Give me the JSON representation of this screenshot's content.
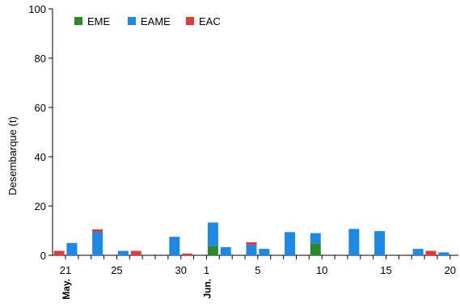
{
  "chart_data": {
    "type": "bar",
    "stacked": true,
    "title": "",
    "xlabel": "",
    "ylabel": "Desembarque (t)",
    "ylim": [
      0,
      100
    ],
    "yticks": [
      0,
      20,
      40,
      60,
      80,
      100
    ],
    "grid": false,
    "legend_placement": "top-left",
    "x_tick_labels": [
      {
        "day": 0,
        "label": "21"
      },
      {
        "day": 4,
        "label": "25"
      },
      {
        "day": 9,
        "label": "30"
      },
      {
        "day": 11,
        "label": "1"
      },
      {
        "day": 15,
        "label": "5"
      },
      {
        "day": 20,
        "label": "10"
      },
      {
        "day": 25,
        "label": "15"
      },
      {
        "day": 30,
        "label": "20"
      }
    ],
    "month_labels": [
      {
        "day": 0,
        "label": "May."
      },
      {
        "day": 11,
        "label": "Jun."
      }
    ],
    "bars": [
      {
        "day": -0.5,
        "EME": 0,
        "EAME": 0,
        "EAC": 1.8
      },
      {
        "day": 0.5,
        "EME": 0,
        "EAME": 5.0,
        "EAC": 0
      },
      {
        "day": 2.5,
        "EME": 0,
        "EAME": 9.5,
        "EAC": 1.0
      },
      {
        "day": 4.5,
        "EME": 0,
        "EAME": 1.8,
        "EAC": 0
      },
      {
        "day": 5.5,
        "EME": 0,
        "EAME": 0,
        "EAC": 1.8
      },
      {
        "day": 8.5,
        "EME": 0,
        "EAME": 7.5,
        "EAC": 0
      },
      {
        "day": 9.5,
        "EME": 0,
        "EAME": 0,
        "EAC": 0.7
      },
      {
        "day": 11.5,
        "EME": 3.8,
        "EAME": 9.5,
        "EAC": 0
      },
      {
        "day": 12.5,
        "EME": 0,
        "EAME": 3.3,
        "EAC": 0
      },
      {
        "day": 14.5,
        "EME": 0,
        "EAME": 4.3,
        "EAC": 1.0
      },
      {
        "day": 15.5,
        "EME": 0,
        "EAME": 2.6,
        "EAC": 0
      },
      {
        "day": 17.5,
        "EME": 0,
        "EAME": 9.4,
        "EAC": 0
      },
      {
        "day": 19.5,
        "EME": 4.8,
        "EAME": 4.2,
        "EAC": 0
      },
      {
        "day": 22.5,
        "EME": 0,
        "EAME": 10.7,
        "EAC": 0
      },
      {
        "day": 24.5,
        "EME": 0,
        "EAME": 9.8,
        "EAC": 0
      },
      {
        "day": 27.5,
        "EME": 0,
        "EAME": 2.6,
        "EAC": 0
      },
      {
        "day": 28.5,
        "EME": 0,
        "EAME": 0,
        "EAC": 1.8
      },
      {
        "day": 29.5,
        "EME": 0,
        "EAME": 1.2,
        "EAC": 0
      }
    ],
    "series": [
      {
        "name": "EME",
        "color": "#2a8a2a"
      },
      {
        "name": "EAME",
        "color": "#1e88e5"
      },
      {
        "name": "EAC",
        "color": "#e53935"
      }
    ]
  }
}
